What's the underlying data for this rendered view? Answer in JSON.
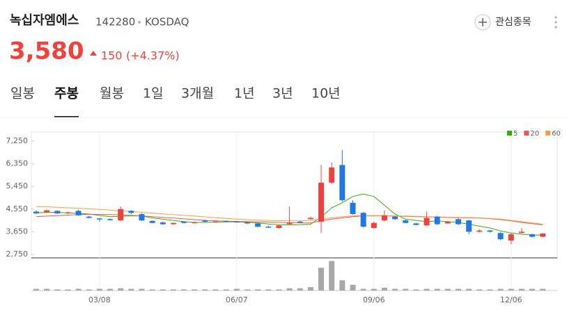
{
  "header": {
    "name": "녹십자엠에스",
    "code": "142280",
    "market": "KOSDAQ",
    "watch": "관심종목",
    "price": "3,580",
    "change": "150",
    "change_pct": "(+4.37%)"
  },
  "tabs": {
    "items": [
      "일봉",
      "주봉",
      "월봉",
      "1일",
      "3개월",
      "1년",
      "3년",
      "10년"
    ],
    "active": 1
  },
  "chart_data": {
    "type": "candlestick",
    "categories": [
      null,
      null,
      null,
      null,
      null,
      null,
      "03/08",
      null,
      null,
      null,
      null,
      null,
      null,
      null,
      null,
      null,
      null,
      null,
      null,
      "06/07",
      null,
      null,
      null,
      null,
      null,
      null,
      null,
      null,
      null,
      null,
      null,
      null,
      "09/06",
      null,
      null,
      null,
      null,
      null,
      null,
      null,
      null,
      null,
      null,
      null,
      null,
      "12/06",
      null,
      null,
      null
    ],
    "open": [
      4450,
      4420,
      4480,
      4380,
      4480,
      4250,
      4180,
      4150,
      4100,
      4480,
      4350,
      4080,
      4020,
      3950,
      4050,
      4000,
      4100,
      4030,
      4080,
      4060,
      4020,
      3980,
      3850,
      3800,
      3950,
      4050,
      4150,
      4050,
      5600,
      6300,
      4800,
      4400,
      3800,
      4100,
      4250,
      4100,
      3980,
      3900,
      4250,
      3980,
      4150,
      4100,
      3650,
      3700,
      3600,
      3300,
      3600,
      3550,
      3450
    ],
    "high": [
      4500,
      4530,
      4500,
      4450,
      4530,
      4280,
      4200,
      4180,
      4650,
      4500,
      4380,
      4100,
      4050,
      4020,
      4080,
      4060,
      4130,
      4080,
      4100,
      4080,
      4050,
      4000,
      3880,
      3920,
      4650,
      4080,
      4250,
      6300,
      6400,
      6900,
      4900,
      4430,
      4050,
      4500,
      4280,
      4130,
      4000,
      4450,
      4280,
      4080,
      4200,
      4130,
      3750,
      3720,
      3650,
      3600,
      3800,
      3580,
      3600
    ],
    "low": [
      4350,
      4400,
      4350,
      4360,
      4280,
      4180,
      4050,
      4100,
      4080,
      4350,
      4080,
      3980,
      3920,
      3930,
      3980,
      3980,
      4030,
      4010,
      4030,
      4010,
      3960,
      3820,
      3810,
      3780,
      3930,
      3990,
      4130,
      3600,
      5550,
      4850,
      4330,
      3820,
      3780,
      4050,
      4120,
      3980,
      3900,
      3880,
      3920,
      3960,
      3920,
      3550,
      3620,
      3620,
      3320,
      3150,
      3580,
      3420,
      3430
    ],
    "close": [
      4380,
      4500,
      4380,
      4420,
      4300,
      4200,
      4150,
      4120,
      4550,
      4400,
      4100,
      4000,
      3950,
      4000,
      4000,
      4030,
      4050,
      4060,
      4050,
      4030,
      3980,
      3850,
      3830,
      3900,
      4000,
      4020,
      4200,
      5600,
      6200,
      4900,
      4350,
      3850,
      4000,
      4300,
      4150,
      4000,
      3920,
      4200,
      3950,
      4050,
      3950,
      3650,
      3700,
      3650,
      3350,
      3550,
      3650,
      3450,
      3580
    ],
    "up_color": "#f0413c",
    "down_color": "#1f78e6",
    "series": [
      {
        "name": "5",
        "color": "#2db400",
        "values": [
          4400,
          4420,
          4420,
          4400,
          4380,
          4350,
          4300,
          4250,
          4260,
          4280,
          4280,
          4200,
          4150,
          4100,
          4050,
          4020,
          4020,
          4030,
          4040,
          4040,
          4030,
          4000,
          3960,
          3930,
          3920,
          3930,
          3950,
          4230,
          4600,
          4800,
          5050,
          5150,
          5050,
          4700,
          4350,
          4150,
          4100,
          4050,
          4080,
          4050,
          4020,
          3950,
          3870,
          3800,
          3680,
          3600,
          3550,
          3520,
          3520
        ]
      },
      {
        "name": "20",
        "color": "#f05650",
        "values": [
          4250,
          4270,
          4290,
          4310,
          4330,
          4340,
          4340,
          4330,
          4320,
          4300,
          4280,
          4250,
          4220,
          4190,
          4160,
          4130,
          4100,
          4080,
          4070,
          4060,
          4050,
          4040,
          4030,
          4020,
          4010,
          4000,
          4000,
          4080,
          4150,
          4200,
          4250,
          4280,
          4280,
          4280,
          4270,
          4260,
          4250,
          4240,
          4230,
          4220,
          4210,
          4200,
          4190,
          4170,
          4130,
          4080,
          4020,
          3970,
          3920
        ]
      },
      {
        "name": "60",
        "color": "#ff9c38",
        "values": [
          4650,
          4640,
          4620,
          4600,
          4580,
          4560,
          4540,
          4510,
          4480,
          4450,
          4420,
          4390,
          4360,
          4330,
          4300,
          4270,
          4240,
          4210,
          4180,
          4150,
          4130,
          4110,
          4100,
          4090,
          4080,
          4080,
          4100,
          4150,
          4200,
          4250,
          4280,
          4290,
          4290,
          4290,
          4280,
          4270,
          4260,
          4250,
          4240,
          4230,
          4220,
          4210,
          4200,
          4180,
          4150,
          4100,
          4050,
          4000,
          3950
        ]
      }
    ],
    "volume": [
      3,
      3,
      2,
      2,
      3,
      2,
      3,
      3,
      4,
      3,
      3,
      2,
      2,
      2,
      2,
      2,
      2,
      2,
      2,
      3,
      2,
      2,
      2,
      2,
      4,
      4,
      6,
      40,
      52,
      18,
      10,
      3,
      3,
      5,
      3,
      3,
      2,
      3,
      3,
      3,
      3,
      3,
      2,
      2,
      3,
      3,
      3,
      3,
      3
    ],
    "volume_color": "#a8a8a8",
    "volume_lim": [
      0,
      55
    ],
    "ylim": [
      2750,
      7250
    ],
    "yticks": [
      {
        "value": 2750,
        "label": "2,750"
      },
      {
        "value": 3650,
        "label": "3,650"
      },
      {
        "value": 4550,
        "label": "4,550"
      },
      {
        "value": 5450,
        "label": "5,450"
      },
      {
        "value": 6350,
        "label": "6,350"
      },
      {
        "value": 7250,
        "label": "7,250"
      }
    ],
    "legend": "top-right"
  }
}
